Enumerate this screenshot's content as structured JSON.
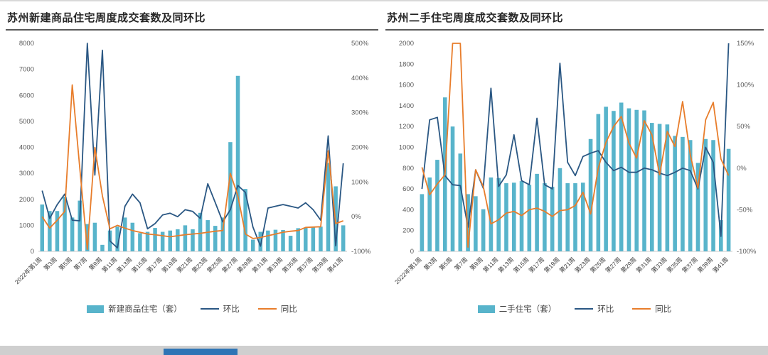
{
  "chart_data": [
    {
      "type": "combo-bar-line",
      "title": "苏州新建商品住宅周度成交套数及同环比",
      "n_weeks": 41,
      "x_tick_labels": [
        "2022年第1周",
        "第3周",
        "第5周",
        "第7周",
        "第9周",
        "第11周",
        "第13周",
        "第15周",
        "第17周",
        "第19周",
        "第21周",
        "第23周",
        "第25周",
        "第27周",
        "第29周",
        "第31周",
        "第33周",
        "第35周",
        "第37周",
        "第39周",
        "第41周"
      ],
      "y_left": {
        "min": 0,
        "max": 8000,
        "step": 1000
      },
      "y_right": {
        "min": -100,
        "max": 500,
        "step": 100,
        "format": "percent"
      },
      "grid": false,
      "legend_position": "bottom",
      "bar_series": {
        "name": "新建商品住宅（套）",
        "color": "#58b4cb",
        "values": [
          1800,
          1550,
          1550,
          2100,
          1300,
          1950,
          1050,
          1100,
          250,
          800,
          950,
          1300,
          1100,
          700,
          750,
          900,
          750,
          800,
          850,
          1000,
          850,
          1480,
          1200,
          980,
          1300,
          4200,
          6750,
          2400,
          450,
          750,
          800,
          830,
          820,
          600,
          890,
          910,
          940,
          950,
          3400,
          2500,
          1000
        ]
      },
      "line_series": [
        {
          "name": "环比",
          "axis": "right",
          "color": "#2a5783",
          "values": [
            75,
            -5,
            35,
            65,
            -10,
            -12,
            500,
            120,
            480,
            -70,
            -90,
            30,
            65,
            40,
            -35,
            -20,
            5,
            10,
            0,
            20,
            15,
            -5,
            95,
            40,
            -15,
            20,
            90,
            70,
            -30,
            -85,
            25,
            30,
            35,
            30,
            25,
            40,
            20,
            -10,
            233,
            -84,
            154
          ]
        },
        {
          "name": "同比",
          "axis": "right",
          "color": "#e87d2b",
          "values": [
            0,
            -33,
            -10,
            15,
            380,
            140,
            -94,
            200,
            60,
            -35,
            -25,
            -33,
            -40,
            -45,
            -50,
            -52,
            -55,
            -58,
            -55,
            -52,
            -50,
            -48,
            -45,
            -42,
            -40,
            125,
            60,
            -50,
            -63,
            -60,
            -55,
            -50,
            -45,
            -42,
            -40,
            -31,
            -30,
            -29,
            190,
            -20,
            -12
          ]
        }
      ]
    },
    {
      "type": "combo-bar-line",
      "title": "苏州二手住宅周度成交套数及同环比",
      "n_weeks": 41,
      "x_tick_labels": [
        "2022年第1周",
        "第3周",
        "第5周",
        "第7周",
        "第9周",
        "第11周",
        "第13周",
        "第15周",
        "第17周",
        "第19周",
        "第21周",
        "第23周",
        "第25周",
        "第27周",
        "第29周",
        "第31周",
        "第33周",
        "第35周",
        "第37周",
        "第39周",
        "第41周"
      ],
      "y_left": {
        "min": 0,
        "max": 2000,
        "step": 200
      },
      "y_right": {
        "min": -100,
        "max": 150,
        "step": 50,
        "format": "percent"
      },
      "grid": false,
      "legend_position": "bottom",
      "bar_series": {
        "name": "二手住宅（套）",
        "color": "#58b4cb",
        "values": [
          550,
          710,
          880,
          1480,
          1200,
          940,
          550,
          530,
          405,
          710,
          705,
          655,
          660,
          675,
          640,
          745,
          655,
          620,
          800,
          655,
          655,
          660,
          1080,
          1320,
          1390,
          1350,
          1430,
          1375,
          1360,
          1355,
          1235,
          1225,
          1220,
          1110,
          1100,
          1070,
          850,
          1080,
          1070,
          300,
          985
        ]
      },
      "line_series": [
        {
          "name": "环比",
          "axis": "right",
          "color": "#2a5783",
          "values": [
            -25,
            58,
            61,
            -9,
            -20,
            -21,
            -71,
            -2,
            -24,
            96,
            -22,
            -8,
            40,
            -15,
            -20,
            60,
            -20,
            -25,
            126,
            7,
            -9,
            14,
            18,
            21,
            7,
            -3,
            1,
            -5,
            -5,
            0,
            -2,
            -6,
            -9,
            -5,
            0,
            -3,
            -25,
            25,
            7,
            -82,
            150
          ]
        },
        {
          "name": "同比",
          "axis": "right",
          "color": "#e87d2b",
          "values": [
            1,
            -32,
            -19,
            -8,
            150,
            150,
            -95,
            -2,
            -22,
            -67,
            -62,
            -54,
            -52,
            -57,
            -50,
            -48,
            -52,
            -58,
            -51,
            -50,
            -45,
            -29,
            -55,
            0,
            31,
            50,
            62,
            30,
            12,
            57,
            40,
            -8,
            44,
            26,
            80,
            16,
            -24,
            58,
            79,
            11,
            -9
          ]
        }
      ]
    }
  ],
  "colors": {
    "bar": "#58b4cb",
    "line_huanbi": "#2a5783",
    "line_tongbi": "#e87d2b",
    "axis_text": "#595959",
    "title_text": "#262626"
  }
}
